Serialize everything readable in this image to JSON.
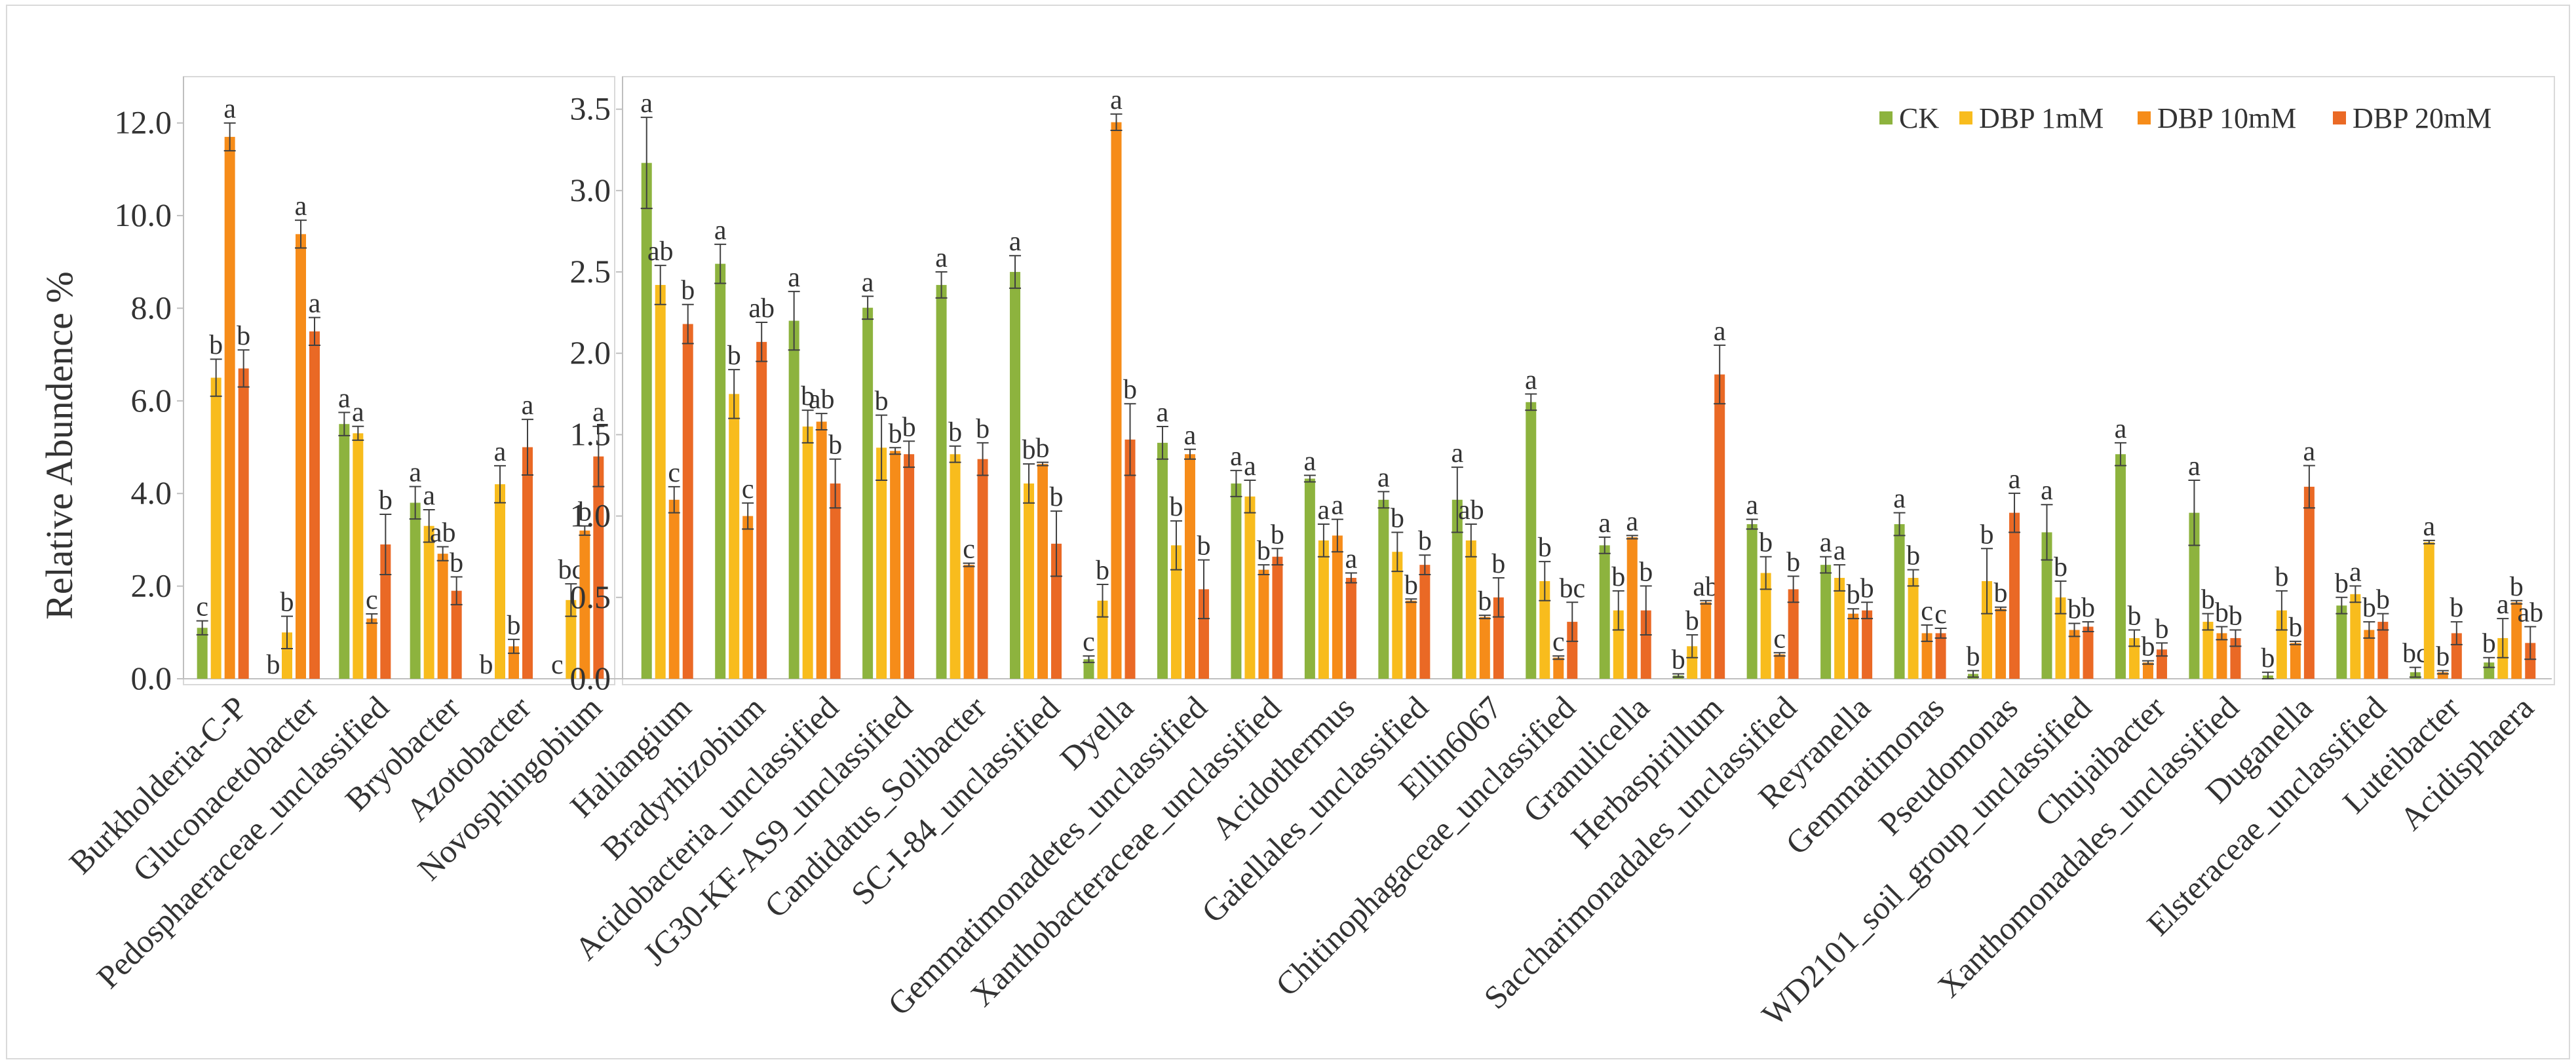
{
  "figure": {
    "ylabel": "Relative Abundence %",
    "legend_position": "top-right"
  },
  "series": [
    {
      "name": "CK",
      "color": "#8DB33E"
    },
    {
      "name": "DBP 1mM",
      "color": "#F8BC1D"
    },
    {
      "name": "DBP 10mM",
      "color": "#F68C19"
    },
    {
      "name": "DBP 20mM",
      "color": "#EA6925"
    }
  ],
  "chart_data": [
    {
      "type": "bar",
      "title": "",
      "xlabel": "",
      "ylabel": "Relative Abundence %",
      "ylim": [
        0,
        13
      ],
      "yticks": [
        0,
        2,
        4,
        6,
        8,
        10,
        12
      ],
      "ytick_labels": [
        "0.0",
        "2.0",
        "4.0",
        "6.0",
        "8.0",
        "10.0",
        "12.0"
      ],
      "grid": false,
      "categories": [
        "Burkholderia-C-P",
        "Gluconacetobacter",
        "Pedosphaeraceae_unclassified",
        "Bryobacter",
        "Azotobacter",
        "Novosphingobium"
      ],
      "series": [
        {
          "name": "CK",
          "values": [
            1.1,
            0.0,
            5.5,
            3.8,
            0.0,
            0.0
          ],
          "errors": [
            0.15,
            0.0,
            0.25,
            0.35,
            0.0,
            0.0
          ],
          "labels": [
            "c",
            "b",
            "a",
            "a",
            "b",
            "c"
          ]
        },
        {
          "name": "DBP 1mM",
          "values": [
            6.5,
            1.0,
            5.3,
            3.3,
            4.2,
            1.7
          ],
          "errors": [
            0.4,
            0.35,
            0.15,
            0.35,
            0.4,
            0.35
          ],
          "labels": [
            "b",
            "b",
            "a",
            "a",
            "a",
            "bc"
          ]
        },
        {
          "name": "DBP 10mM",
          "values": [
            11.7,
            9.6,
            1.3,
            2.7,
            0.7,
            3.2
          ],
          "errors": [
            0.3,
            0.3,
            0.1,
            0.15,
            0.15,
            0.1
          ],
          "labels": [
            "a",
            "a",
            "c",
            "ab",
            "b",
            "b"
          ]
        },
        {
          "name": "DBP 20mM",
          "values": [
            6.7,
            7.5,
            2.9,
            1.9,
            5.0,
            4.8
          ],
          "errors": [
            0.4,
            0.3,
            0.65,
            0.3,
            0.6,
            0.65
          ],
          "labels": [
            "b",
            "a",
            "b",
            "b",
            "a",
            "a"
          ]
        }
      ]
    },
    {
      "type": "bar",
      "title": "",
      "xlabel": "",
      "ylabel": "",
      "ylim": [
        0,
        3.7
      ],
      "yticks": [
        0,
        0.5,
        1.0,
        1.5,
        2.0,
        2.5,
        3.0,
        3.5
      ],
      "ytick_labels": [
        "0.0",
        "0.5",
        "1.0",
        "1.5",
        "2.0",
        "2.5",
        "3.0",
        "3.5"
      ],
      "grid": false,
      "legend": "top-right",
      "categories": [
        "Haliangium",
        "Bradyrhizobium",
        "Acidobacteria_unclassified",
        "JG30-KF-AS9_unclassified",
        "Candidatus_Solibacter",
        "SC-I-84_unclassified",
        "Dyella",
        "Gemmatimonadetes_unclassified",
        "Xanthobacteraceae_unclassified",
        "Acidothermus",
        "Gaiellales_unclassified",
        "Ellin6067",
        "Chitinophagaceae_unclassified",
        "Granulicella",
        "Herbaspirillum",
        "Saccharimonadales_unclassified",
        "Reyranella",
        "Gemmatimonas",
        "Pseudomonas",
        "WD2101_soil_group_unclassified",
        "Chujaibacter",
        "Xanthomonadales_unclassified",
        "Duganella",
        "Elsteraceae_unclassified",
        "Luteibacter",
        "Acidisphaera"
      ],
      "series": [
        {
          "name": "CK",
          "values": [
            3.17,
            2.55,
            2.2,
            2.28,
            2.42,
            2.5,
            0.12,
            1.45,
            1.2,
            1.23,
            1.1,
            1.1,
            1.7,
            0.82,
            0.02,
            0.95,
            0.7,
            0.95,
            0.03,
            0.9,
            1.38,
            1.02,
            0.02,
            0.45,
            0.04,
            0.1
          ],
          "errors": [
            0.28,
            0.12,
            0.18,
            0.07,
            0.08,
            0.1,
            0.02,
            0.1,
            0.08,
            0.02,
            0.05,
            0.2,
            0.05,
            0.05,
            0.01,
            0.03,
            0.05,
            0.07,
            0.02,
            0.17,
            0.07,
            0.2,
            0.02,
            0.05,
            0.03,
            0.03
          ],
          "labels": [
            "a",
            "a",
            "a",
            "a",
            "a",
            "a",
            "c",
            "a",
            "a",
            "a",
            "a",
            "a",
            "a",
            "a",
            "b",
            "a",
            "a",
            "a",
            "b",
            "a",
            "a",
            "a",
            "b",
            "b",
            "bc",
            "b"
          ]
        },
        {
          "name": "DBP 1mM",
          "values": [
            2.42,
            1.75,
            1.55,
            1.42,
            1.38,
            1.2,
            0.48,
            0.82,
            1.12,
            0.85,
            0.78,
            0.85,
            0.6,
            0.42,
            0.2,
            0.65,
            0.62,
            0.62,
            0.6,
            0.5,
            0.25,
            0.35,
            0.42,
            0.52,
            0.84,
            0.25
          ],
          "errors": [
            0.12,
            0.15,
            0.1,
            0.2,
            0.05,
            0.12,
            0.1,
            0.15,
            0.1,
            0.1,
            0.12,
            0.1,
            0.12,
            0.12,
            0.07,
            0.1,
            0.08,
            0.05,
            0.2,
            0.1,
            0.05,
            0.05,
            0.12,
            0.05,
            0.01,
            0.12
          ],
          "labels": [
            "ab",
            "b",
            "b",
            "b",
            "b",
            "b",
            "b",
            "b",
            "a",
            "a",
            "b",
            "ab",
            "b",
            "b",
            "b",
            "b",
            "a",
            "b",
            "b",
            "b",
            "b",
            "b",
            "b",
            "a",
            "a",
            "a"
          ]
        },
        {
          "name": "DBP 10mM",
          "values": [
            1.1,
            1.0,
            1.58,
            1.4,
            0.7,
            1.32,
            3.42,
            1.38,
            0.67,
            0.88,
            0.48,
            0.38,
            0.13,
            0.87,
            0.47,
            0.15,
            0.4,
            0.28,
            0.43,
            0.3,
            0.1,
            0.28,
            0.22,
            0.3,
            0.04,
            0.47
          ],
          "errors": [
            0.08,
            0.08,
            0.05,
            0.02,
            0.01,
            0.01,
            0.05,
            0.03,
            0.03,
            0.1,
            0.01,
            0.01,
            0.01,
            0.01,
            0.01,
            0.01,
            0.03,
            0.05,
            0.01,
            0.04,
            0.01,
            0.04,
            0.01,
            0.05,
            0.01,
            0.01
          ],
          "labels": [
            "c",
            "c",
            "ab",
            "b",
            "c",
            "b",
            "a",
            "a",
            "b",
            "a",
            "b",
            "b",
            "c",
            "a",
            "ab",
            "c",
            "b",
            "c",
            "b",
            "b",
            "b",
            "b",
            "b",
            "b",
            "b",
            "b"
          ]
        },
        {
          "name": "DBP 20mM",
          "values": [
            2.18,
            2.07,
            1.2,
            1.38,
            1.35,
            0.83,
            1.47,
            0.55,
            0.75,
            0.62,
            0.7,
            0.5,
            0.35,
            0.42,
            1.87,
            0.55,
            0.42,
            0.28,
            1.02,
            0.32,
            0.18,
            0.25,
            1.18,
            0.35,
            0.28,
            0.22
          ],
          "errors": [
            0.12,
            0.12,
            0.15,
            0.08,
            0.1,
            0.2,
            0.22,
            0.18,
            0.05,
            0.03,
            0.06,
            0.12,
            0.12,
            0.15,
            0.18,
            0.08,
            0.05,
            0.03,
            0.12,
            0.03,
            0.04,
            0.05,
            0.13,
            0.05,
            0.07,
            0.1
          ],
          "labels": [
            "b",
            "ab",
            "b",
            "b",
            "b",
            "b",
            "b",
            "b",
            "b",
            "a",
            "b",
            "b",
            "bc",
            "b",
            "a",
            "b",
            "b",
            "c",
            "a",
            "b",
            "b",
            "b",
            "a",
            "b",
            "b",
            "ab"
          ]
        }
      ]
    }
  ]
}
